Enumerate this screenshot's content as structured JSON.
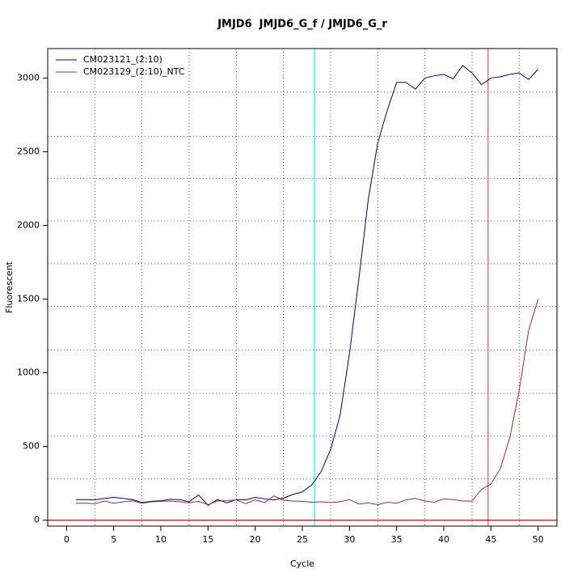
{
  "chart_data": {
    "type": "line",
    "title": "JMJD6  JMJD6_G_f / JMJD6_G_r",
    "x_label": "Cycle",
    "y_label": "Fluorescent",
    "x": [
      1,
      2,
      3,
      4,
      5,
      6,
      7,
      8,
      9,
      10,
      11,
      12,
      13,
      14,
      15,
      16,
      17,
      18,
      19,
      20,
      21,
      22,
      23,
      24,
      25,
      26,
      27,
      28,
      29,
      30,
      31,
      32,
      33,
      34,
      35,
      36,
      37,
      38,
      39,
      40,
      41,
      42,
      43,
      44,
      45,
      46,
      47,
      48,
      49,
      50
    ],
    "series": [
      {
        "name": "CM023121_(2:10)",
        "color": "#00008b",
        "values": [
          140,
          140,
          138,
          148,
          155,
          148,
          140,
          120,
          128,
          132,
          142,
          140,
          125,
          172,
          100,
          140,
          118,
          140,
          138,
          155,
          145,
          138,
          150,
          175,
          192,
          240,
          330,
          480,
          710,
          1130,
          1640,
          2180,
          2560,
          2780,
          2970,
          2970,
          2925,
          3000,
          3015,
          3025,
          2995,
          3085,
          3035,
          2955,
          3000,
          3008,
          3025,
          3035,
          2990,
          3060
        ]
      },
      {
        "name": "CM023129_(2:10)_NTC",
        "color": "#a52a2a",
        "values": [
          115,
          115,
          112,
          130,
          115,
          125,
          132,
          115,
          125,
          128,
          130,
          125,
          118,
          128,
          105,
          130,
          132,
          138,
          112,
          138,
          120,
          165,
          135,
          130,
          128,
          122,
          125,
          120,
          125,
          140,
          110,
          118,
          105,
          122,
          115,
          138,
          148,
          130,
          122,
          145,
          140,
          130,
          130,
          210,
          245,
          350,
          560,
          880,
          1290,
          1500
        ]
      }
    ],
    "xlim": [
      -2,
      52
    ],
    "ylim": [
      -40,
      3200
    ],
    "xticks": [
      0,
      5,
      10,
      15,
      20,
      25,
      30,
      35,
      40,
      45,
      50
    ],
    "yticks": [
      0,
      500,
      1000,
      1500,
      2000,
      2500,
      3000
    ],
    "grid": true,
    "xgrid": [
      3,
      8,
      13,
      18,
      23,
      28,
      33,
      38,
      43,
      48
    ],
    "ygrid": [
      280,
      570,
      860,
      1155,
      1450,
      1740,
      2030,
      2320,
      2605,
      2905
    ],
    "vlines": [
      {
        "x": 26.3,
        "color": "#00ffff"
      },
      {
        "x": 44.7,
        "color": "#cd5c5c"
      }
    ],
    "hlines": [
      {
        "y": 0,
        "color": "#cc0000"
      }
    ],
    "legend": "top-left"
  }
}
